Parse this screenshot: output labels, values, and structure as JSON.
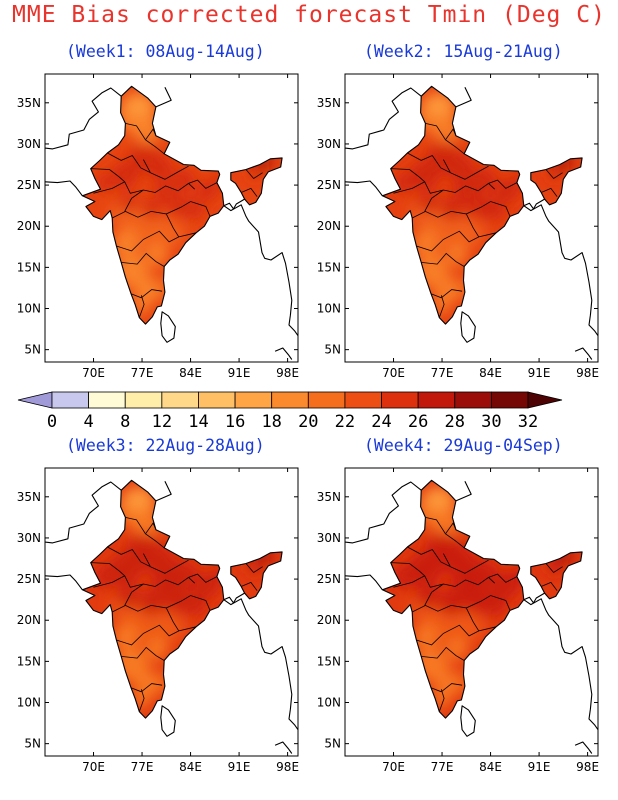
{
  "title": "MME Bias corrected forecast Tmin (Deg C)",
  "colors": {
    "title": "#e8342c",
    "subtitle": "#1a3ad8",
    "land_outline": "#000000"
  },
  "panels": [
    {
      "label": "(Week1: 08Aug-14Aug)",
      "level": 0.3
    },
    {
      "label": "(Week2: 15Aug-21Aug)",
      "level": 0.45
    },
    {
      "label": "(Week3: 22Aug-28Aug)",
      "level": 0.62
    },
    {
      "label": "(Week4: 29Aug-04Sep)",
      "level": 0.68
    }
  ],
  "axes": {
    "lon_ticks": [
      "70E",
      "77E",
      "84E",
      "91E",
      "98E"
    ],
    "lat_ticks": [
      "35N",
      "30N",
      "25N",
      "20N",
      "15N",
      "10N",
      "5N"
    ]
  },
  "colorbar": {
    "labels": [
      "0",
      "4",
      "8",
      "12",
      "14",
      "16",
      "18",
      "20",
      "22",
      "24",
      "26",
      "28",
      "30",
      "32"
    ],
    "colors": [
      "#a09ad8",
      "#c8c8ee",
      "#fffbd6",
      "#ffedaa",
      "#ffd88a",
      "#ffc065",
      "#ffa545",
      "#fb8a2e",
      "#f56e1e",
      "#ec4e14",
      "#dc300e",
      "#c2170b",
      "#9a0d08",
      "#750805",
      "#4d0303"
    ]
  }
}
